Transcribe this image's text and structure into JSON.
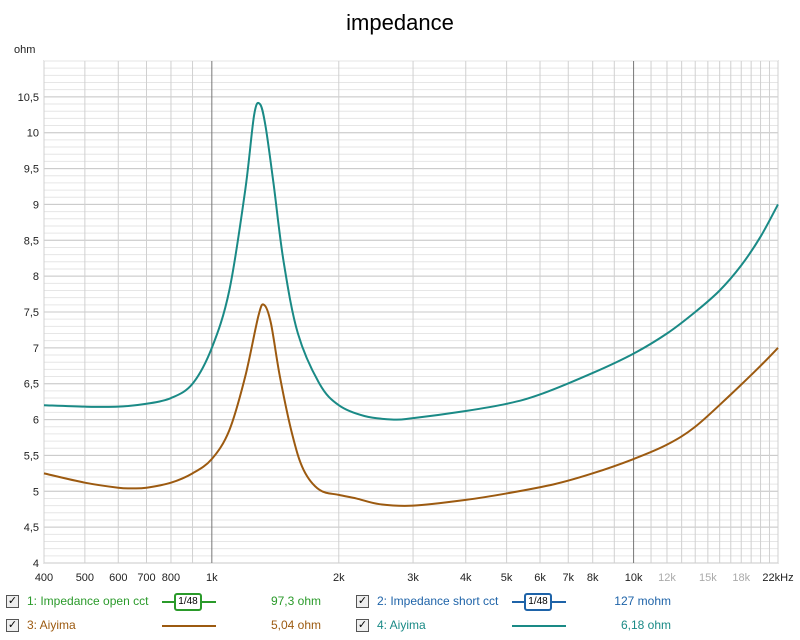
{
  "chart_data": {
    "type": "line",
    "title": "impedance",
    "ylabel": "ohm",
    "xlabel": "Hz",
    "xscale": "log",
    "xlim": [
      400,
      22000
    ],
    "ylim": [
      4,
      11
    ],
    "grid": true,
    "x_ticks": [
      {
        "v": 400,
        "l": "400"
      },
      {
        "v": 500,
        "l": "500"
      },
      {
        "v": 600,
        "l": "600"
      },
      {
        "v": 700,
        "l": "700"
      },
      {
        "v": 800,
        "l": "800"
      },
      {
        "v": 1000,
        "l": "1k"
      },
      {
        "v": 2000,
        "l": "2k"
      },
      {
        "v": 3000,
        "l": "3k"
      },
      {
        "v": 4000,
        "l": "4k"
      },
      {
        "v": 5000,
        "l": "5k"
      },
      {
        "v": 6000,
        "l": "6k"
      },
      {
        "v": 7000,
        "l": "7k"
      },
      {
        "v": 8000,
        "l": "8k"
      },
      {
        "v": 10000,
        "l": "10k"
      },
      {
        "v": 12000,
        "l": "12k",
        "muted": true
      },
      {
        "v": 15000,
        "l": "15k",
        "muted": true
      },
      {
        "v": 18000,
        "l": "18k",
        "muted": true
      },
      {
        "v": 22000,
        "l": "22kHz"
      }
    ],
    "y_ticks": [
      {
        "v": 4,
        "l": "4"
      },
      {
        "v": 4.5,
        "l": "4,5"
      },
      {
        "v": 5,
        "l": "5"
      },
      {
        "v": 5.5,
        "l": "5,5"
      },
      {
        "v": 6,
        "l": "6"
      },
      {
        "v": 6.5,
        "l": "6,5"
      },
      {
        "v": 7,
        "l": "7"
      },
      {
        "v": 7.5,
        "l": "7,5"
      },
      {
        "v": 8,
        "l": "8"
      },
      {
        "v": 8.5,
        "l": "8,5"
      },
      {
        "v": 9,
        "l": "9"
      },
      {
        "v": 9.5,
        "l": "9,5"
      },
      {
        "v": 10,
        "l": "10"
      },
      {
        "v": 10.5,
        "l": "10,5"
      }
    ],
    "series": [
      {
        "name": "4: Aiyima",
        "color": "#1a8a86",
        "x": [
          400,
          500,
          600,
          700,
          800,
          900,
          1000,
          1100,
          1200,
          1260,
          1300,
          1340,
          1400,
          1480,
          1600,
          1800,
          2000,
          2300,
          2700,
          3000,
          4000,
          5000,
          6000,
          8000,
          10000,
          12000,
          14000,
          16000,
          18000,
          20000,
          22000
        ],
        "y": [
          6.2,
          6.18,
          6.18,
          6.22,
          6.3,
          6.5,
          7.0,
          7.8,
          9.2,
          10.25,
          10.4,
          10.1,
          9.3,
          8.2,
          7.2,
          6.5,
          6.2,
          6.05,
          6.0,
          6.02,
          6.12,
          6.22,
          6.35,
          6.65,
          6.92,
          7.2,
          7.5,
          7.8,
          8.15,
          8.55,
          9.0
        ]
      },
      {
        "name": "3: Aiyima",
        "color": "#9c5a10",
        "x": [
          400,
          500,
          600,
          650,
          700,
          800,
          900,
          1000,
          1100,
          1200,
          1290,
          1330,
          1380,
          1450,
          1550,
          1650,
          1800,
          2000,
          2200,
          2500,
          3000,
          4000,
          5000,
          6500,
          8000,
          10000,
          12000,
          14000,
          17000,
          20000,
          22000
        ],
        "y": [
          5.25,
          5.12,
          5.05,
          5.04,
          5.05,
          5.12,
          5.25,
          5.45,
          5.85,
          6.6,
          7.45,
          7.6,
          7.35,
          6.6,
          5.8,
          5.3,
          5.02,
          4.95,
          4.9,
          4.82,
          4.8,
          4.88,
          4.97,
          5.1,
          5.25,
          5.45,
          5.65,
          5.9,
          6.35,
          6.75,
          7.0
        ]
      }
    ]
  },
  "legend": [
    {
      "label": "1: Impedance open cct",
      "color": "#2a9a2a",
      "badge": "1/48",
      "value": "97,3 ohm"
    },
    {
      "label": "2: Impedance short cct",
      "color": "#1e63a8",
      "badge": "1/48",
      "value": "127 mohm"
    },
    {
      "label": "3: Aiyima",
      "color": "#9c5a10",
      "value": "5,04 ohm"
    },
    {
      "label": "4: Aiyima",
      "color": "#1a8a86",
      "value": "6,18 ohm"
    }
  ],
  "check": "✓"
}
